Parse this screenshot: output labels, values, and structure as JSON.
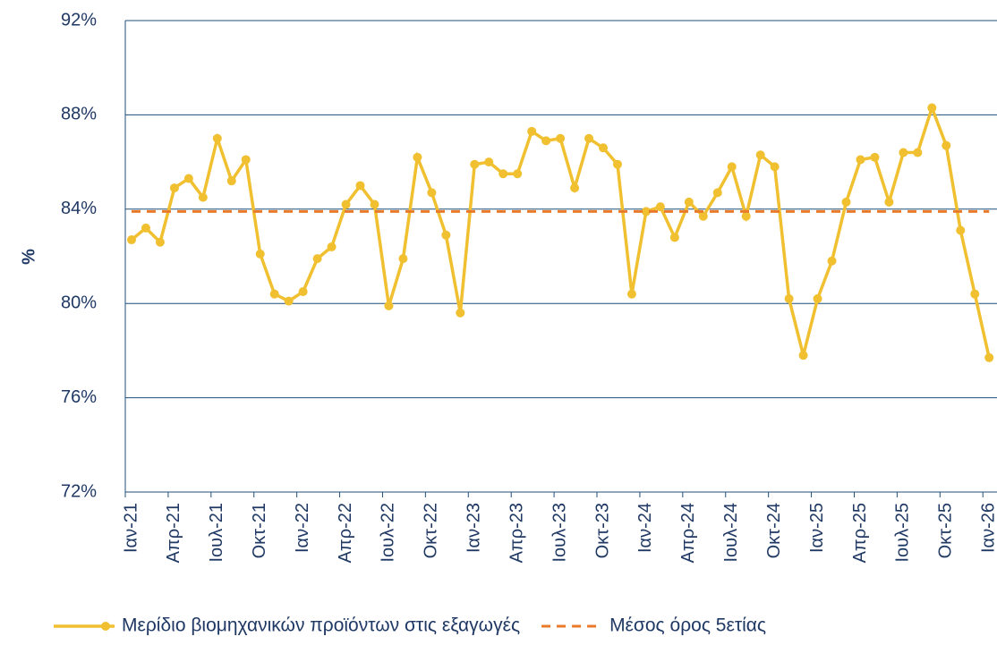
{
  "chart_data": {
    "type": "line",
    "ylabel": "%",
    "categories": [
      "Ιαν-21",
      null,
      null,
      "Απρ-21",
      null,
      null,
      "Ιουλ-21",
      null,
      null,
      "Οκτ-21",
      null,
      null,
      "Ιαν-22",
      null,
      null,
      "Απρ-22",
      null,
      null,
      "Ιουλ-22",
      null,
      null,
      "Οκτ-22",
      null,
      null,
      "Ιαν-23",
      null,
      null,
      "Απρ-23",
      null,
      null,
      "Ιουλ-23",
      null,
      null,
      "Οκτ-23",
      null,
      null,
      "Ιαν-24",
      null,
      null,
      "Απρ-24",
      null,
      null,
      "Ιουλ-24",
      null,
      null,
      "Οκτ-24",
      null,
      null,
      "Ιαν-25",
      null,
      null,
      "Απρ-25",
      null,
      null,
      "Ιουλ-25",
      null,
      null,
      "Οκτ-25",
      null,
      null,
      "Ιαν-26"
    ],
    "series": [
      {
        "name": "Μερίδιο βιομηχανικών προϊόντων στις εξαγωγές",
        "color": "#f0c030",
        "markers": true,
        "values": [
          82.7,
          83.2,
          82.6,
          84.9,
          85.3,
          84.5,
          87.0,
          85.2,
          86.1,
          82.1,
          80.4,
          80.1,
          80.5,
          81.9,
          82.4,
          84.2,
          85.0,
          84.2,
          79.9,
          81.9,
          86.2,
          84.7,
          82.9,
          79.6,
          85.9,
          86.0,
          85.5,
          85.5,
          87.3,
          86.9,
          87.0,
          84.9,
          87.0,
          86.6,
          85.9,
          80.4,
          83.9,
          84.1,
          82.8,
          84.3,
          83.7,
          84.7,
          85.8,
          83.7,
          86.3,
          85.8,
          80.2,
          77.8,
          80.2,
          81.8,
          84.3,
          86.1,
          86.2,
          84.3,
          86.4,
          86.4,
          88.3,
          86.7,
          83.1,
          80.4,
          77.7
        ]
      },
      {
        "name": "Μέσος όρος 5ετίας",
        "color": "#e87a2a",
        "dashed": true,
        "values": [
          83.9,
          83.9,
          83.9,
          83.9,
          83.9,
          83.9,
          83.9,
          83.9,
          83.9,
          83.9,
          83.9,
          83.9,
          83.9,
          83.9,
          83.9,
          83.9,
          83.9,
          83.9,
          83.9,
          83.9,
          83.9,
          83.9,
          83.9,
          83.9,
          83.9,
          83.9,
          83.9,
          83.9,
          83.9,
          83.9,
          83.9,
          83.9,
          83.9,
          83.9,
          83.9,
          83.9,
          83.9,
          83.9,
          83.9,
          83.9,
          83.9,
          83.9,
          83.9,
          83.9,
          83.9,
          83.9,
          83.9,
          83.9,
          83.9,
          83.9,
          83.9,
          83.9,
          83.9,
          83.9,
          83.9,
          83.9,
          83.9,
          83.9,
          83.9,
          83.9,
          83.9
        ]
      }
    ],
    "ylim": [
      72,
      92
    ],
    "yticks": [
      {
        "value": 72,
        "label": "72%"
      },
      {
        "value": 76,
        "label": "76%"
      },
      {
        "value": 80,
        "label": "80%"
      },
      {
        "value": 84,
        "label": "84%"
      },
      {
        "value": 88,
        "label": "88%"
      },
      {
        "value": 92,
        "label": "92%"
      }
    ],
    "grid": true,
    "legend": "bottom"
  }
}
